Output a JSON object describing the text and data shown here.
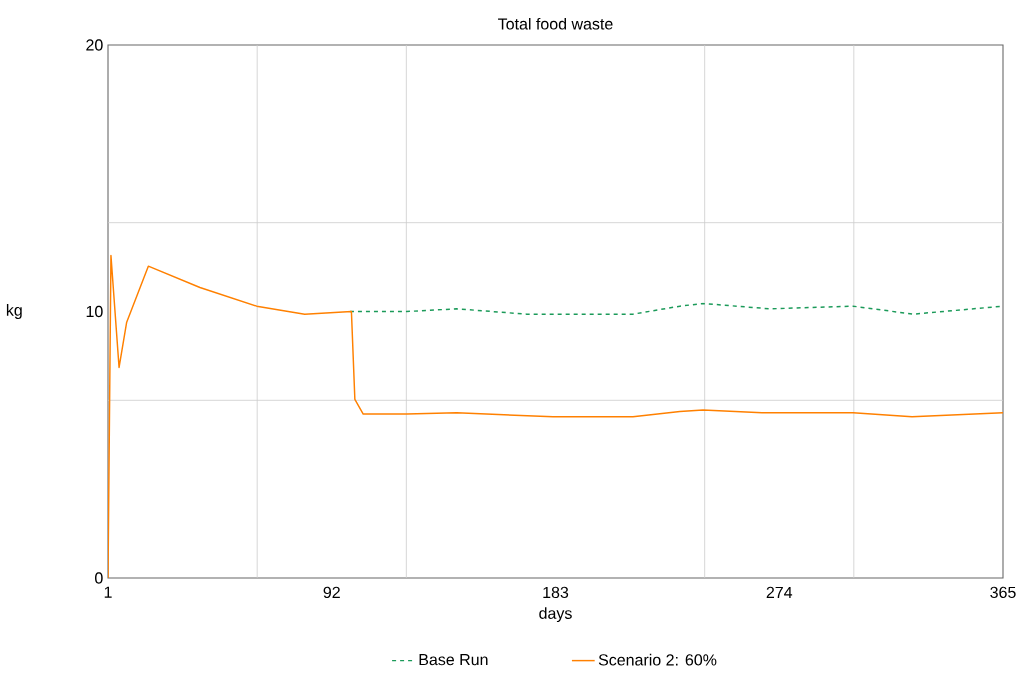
{
  "chart_data": {
    "type": "line",
    "title": "Total food waste",
    "xlabel": "days",
    "ylabel": "kg",
    "xlim": [
      1,
      365
    ],
    "xticks": [
      1,
      {
        "value": 61.67,
        "label": null
      },
      92,
      {
        "value": 122.33,
        "label": null
      },
      183,
      {
        "value": 243.67,
        "label": null
      },
      274,
      {
        "value": 304.33,
        "label": null
      },
      365
    ],
    "ylim": [
      0,
      20
    ],
    "yticks": [
      0,
      {
        "value": 6.667,
        "label": null
      },
      10,
      {
        "value": 13.333,
        "label": null
      },
      20
    ],
    "grid": true,
    "legend": "bottom",
    "series": [
      {
        "name": "Base Run",
        "color": "#1b9a59",
        "line_style": "dashed",
        "x": [
          99.4,
          122.5,
          142.8,
          171.3,
          182,
          214.5,
          233.6,
          243,
          270.2,
          304,
          328.5,
          365
        ],
        "values": [
          10.0,
          10.0,
          10.1,
          9.9,
          9.9,
          9.9,
          10.2,
          10.3,
          10.1,
          10.2,
          9.9,
          10.2
        ]
      },
      {
        "name": "Scenario 2: 60%",
        "color": "#ff8000",
        "line_style": "solid",
        "x": [
          1,
          2.2,
          5.5,
          8.6,
          17.4,
          38.4,
          61.5,
          81,
          100,
          101.4,
          104.8,
          122.5,
          142.8,
          182,
          214.5,
          233.6,
          243,
          267,
          304,
          328,
          365
        ],
        "values": [
          0,
          12.1,
          7.9,
          9.6,
          11.7,
          10.9,
          10.2,
          9.9,
          10.0,
          6.7,
          6.15,
          6.15,
          6.2,
          6.05,
          6.05,
          6.25,
          6.3,
          6.2,
          6.2,
          6.05,
          6.2
        ]
      }
    ]
  }
}
